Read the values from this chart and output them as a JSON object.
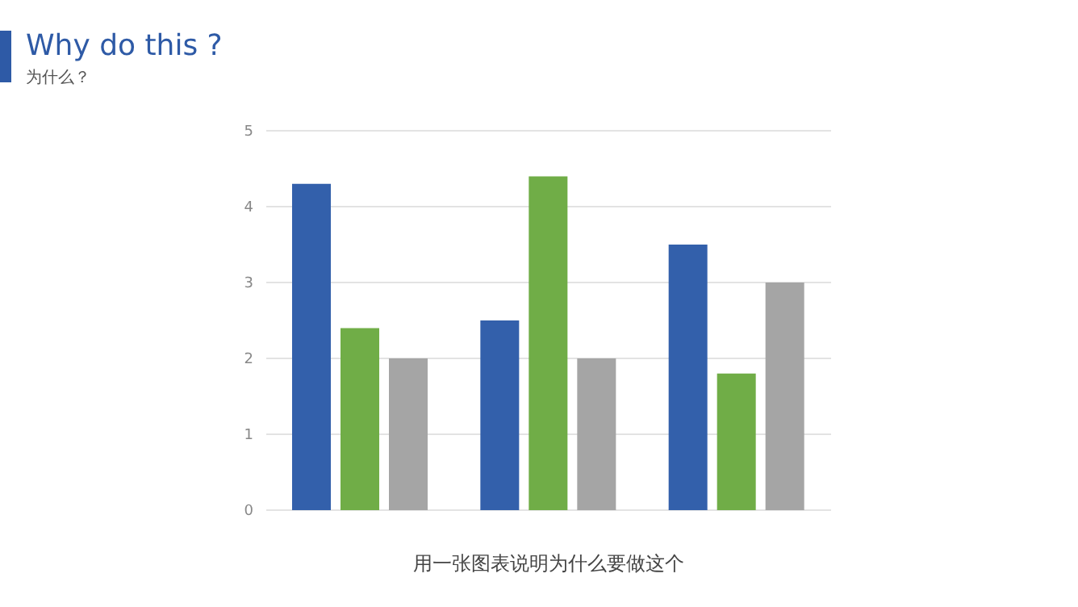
{
  "chart_data": {
    "type": "bar",
    "title": "Why do this ?",
    "subtitle": "为什么？",
    "xlabel": "用一张图表说明为什么要做这个",
    "categories": [
      null,
      null,
      null
    ],
    "series": [
      {
        "color": "#3360ab",
        "values": [
          4.3,
          2.5,
          3.5
        ]
      },
      {
        "color": "#70ad47",
        "values": [
          2.4,
          4.4,
          1.8
        ]
      },
      {
        "color": "#a5a5a5",
        "values": [
          2,
          2,
          3
        ]
      }
    ],
    "ylim": [
      0,
      5
    ],
    "yticks": [
      0,
      1,
      2,
      3,
      4,
      5
    ],
    "grid": "y",
    "legend": false,
    "tick_labels": "y"
  }
}
